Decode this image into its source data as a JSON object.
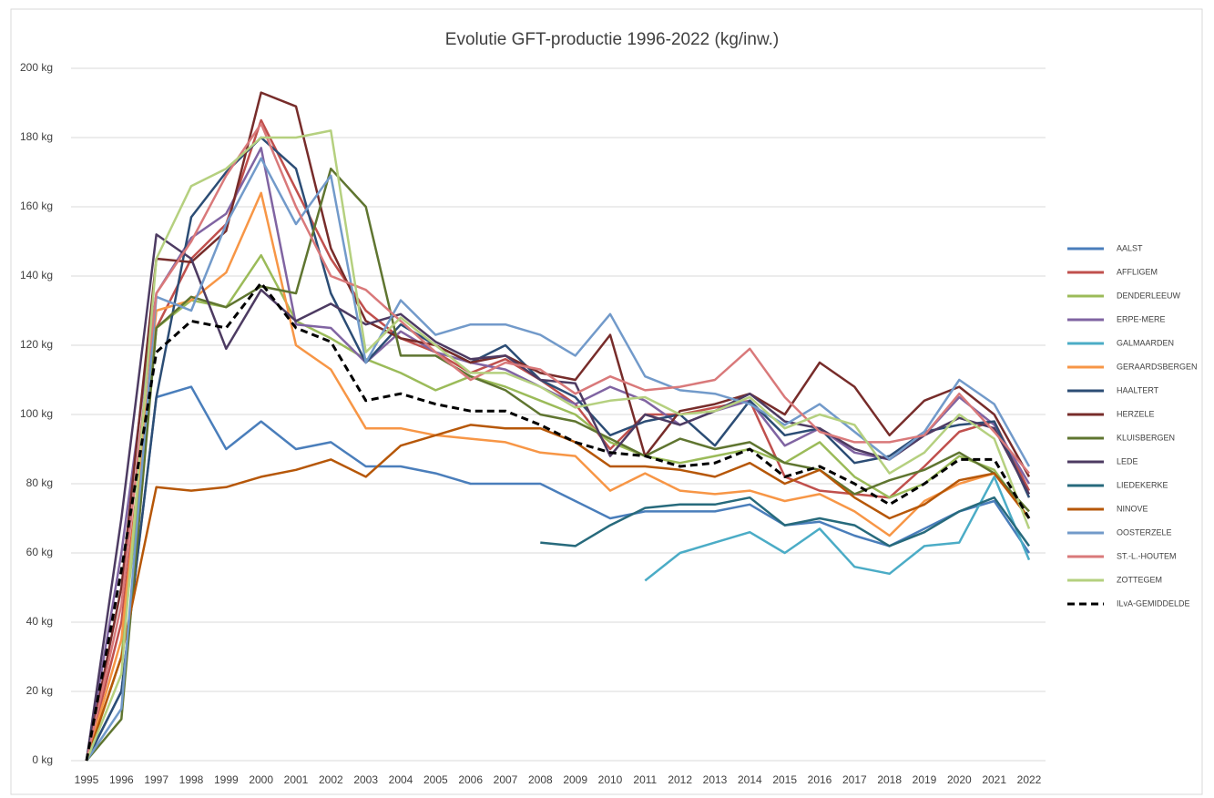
{
  "chart_data": {
    "type": "line",
    "title": "Evolutie GFT-productie 1996-2022 (kg/inw.)",
    "categories": [
      "1995",
      "1996",
      "1997",
      "1998",
      "1999",
      "2000",
      "2001",
      "2002",
      "2003",
      "2004",
      "2005",
      "2006",
      "2007",
      "2008",
      "2009",
      "2010",
      "2011",
      "2012",
      "2013",
      "2014",
      "2015",
      "2016",
      "2017",
      "2018",
      "2019",
      "2020",
      "2021",
      "2022"
    ],
    "ylim": [
      0,
      200
    ],
    "yticks": [
      {
        "value": 0,
        "label": "0 kg"
      },
      {
        "value": 20,
        "label": "20 kg"
      },
      {
        "value": 40,
        "label": "40 kg"
      },
      {
        "value": 60,
        "label": "60 kg"
      },
      {
        "value": 80,
        "label": "80 kg"
      },
      {
        "value": 100,
        "label": "100 kg"
      },
      {
        "value": 120,
        "label": "120 kg"
      },
      {
        "value": 140,
        "label": "140 kg"
      },
      {
        "value": 160,
        "label": "160 kg"
      },
      {
        "value": 180,
        "label": "180 kg"
      },
      {
        "value": 200,
        "label": "200 kg"
      }
    ],
    "grid": true,
    "legend": "right",
    "series": [
      {
        "name": "AALST",
        "color": "#4a7ebb",
        "values": [
          0,
          20,
          105,
          108,
          90,
          98,
          90,
          92,
          85,
          85,
          83,
          80,
          80,
          80,
          75,
          70,
          72,
          72,
          72,
          74,
          68,
          69,
          65,
          62,
          67,
          72,
          75,
          60
        ]
      },
      {
        "name": "AFFLIGEM",
        "color": "#c0504d",
        "values": [
          0,
          40,
          125,
          145,
          155,
          185,
          165,
          145,
          130,
          122,
          118,
          112,
          116,
          110,
          103,
          90,
          100,
          100,
          102,
          104,
          82,
          78,
          77,
          76,
          85,
          95,
          98,
          78
        ]
      },
      {
        "name": "DENDERLEEUW",
        "color": "#9bbb59",
        "values": [
          0,
          30,
          125,
          133,
          131,
          146,
          127,
          122,
          116,
          112,
          107,
          111,
          108,
          104,
          100,
          92,
          88,
          86,
          88,
          90,
          86,
          92,
          82,
          76,
          80,
          88,
          84,
          70
        ]
      },
      {
        "name": "ERPE-MERE",
        "color": "#8064a2",
        "values": [
          0,
          60,
          135,
          151,
          158,
          177,
          126,
          125,
          115,
          124,
          118,
          115,
          113,
          108,
          103,
          108,
          104,
          97,
          101,
          104,
          91,
          96,
          89,
          87,
          94,
          105,
          97,
          80
        ]
      },
      {
        "name": "GALMAARDEN",
        "color": "#4bacc6",
        "values": [
          null,
          null,
          null,
          null,
          null,
          null,
          null,
          null,
          null,
          null,
          null,
          null,
          null,
          null,
          null,
          null,
          52,
          60,
          63,
          66,
          60,
          67,
          56,
          54,
          62,
          63,
          82,
          58
        ]
      },
      {
        "name": "GERAARDSBERGEN",
        "color": "#f79646",
        "values": [
          0,
          35,
          130,
          133,
          141,
          164,
          120,
          113,
          96,
          96,
          94,
          93,
          92,
          89,
          88,
          78,
          83,
          78,
          77,
          78,
          75,
          77,
          72,
          65,
          75,
          80,
          83,
          70
        ]
      },
      {
        "name": "HAALTERT",
        "color": "#2c4d75",
        "values": [
          0,
          20,
          105,
          157,
          170,
          180,
          171,
          135,
          115,
          126,
          120,
          115,
          120,
          110,
          105,
          94,
          98,
          100,
          91,
          104,
          94,
          96,
          86,
          88,
          95,
          97,
          98,
          76
        ]
      },
      {
        "name": "HERZELE",
        "color": "#772c2a",
        "values": [
          0,
          50,
          145,
          144,
          153,
          193,
          189,
          148,
          127,
          122,
          120,
          115,
          117,
          112,
          110,
          123,
          88,
          101,
          103,
          106,
          100,
          115,
          108,
          94,
          104,
          108,
          100,
          82
        ]
      },
      {
        "name": "KLUISBERGEN",
        "color": "#5f7530",
        "values": [
          0,
          12,
          125,
          134,
          131,
          137,
          135,
          171,
          160,
          117,
          117,
          111,
          107,
          100,
          98,
          93,
          88,
          93,
          90,
          92,
          86,
          84,
          77,
          81,
          84,
          89,
          83,
          72
        ]
      },
      {
        "name": "LEDE",
        "color": "#4d3b62",
        "values": [
          0,
          70,
          152,
          145,
          119,
          136,
          127,
          132,
          126,
          129,
          121,
          116,
          117,
          110,
          109,
          88,
          100,
          97,
          101,
          106,
          98,
          96,
          90,
          87,
          94,
          99,
          96,
          77
        ]
      },
      {
        "name": "LIEDEKERKE",
        "color": "#276a7c",
        "values": [
          null,
          null,
          null,
          null,
          null,
          null,
          null,
          null,
          null,
          null,
          null,
          null,
          null,
          63,
          62,
          68,
          73,
          74,
          74,
          76,
          68,
          70,
          68,
          62,
          66,
          72,
          76,
          62
        ]
      },
      {
        "name": "NINOVE",
        "color": "#b65708",
        "values": [
          0,
          30,
          79,
          78,
          79,
          82,
          84,
          87,
          82,
          91,
          94,
          97,
          96,
          96,
          92,
          85,
          85,
          84,
          82,
          86,
          80,
          84,
          76,
          70,
          74,
          81,
          83,
          70
        ]
      },
      {
        "name": "OOSTERZELE",
        "color": "#729aca",
        "values": [
          0,
          15,
          134,
          130,
          155,
          174,
          155,
          169,
          115,
          133,
          123,
          126,
          126,
          123,
          117,
          129,
          111,
          107,
          106,
          103,
          97,
          103,
          95,
          87,
          95,
          110,
          103,
          85
        ]
      },
      {
        "name": "ST.-L.-HOUTEM",
        "color": "#d9797a",
        "values": [
          0,
          45,
          135,
          150,
          169,
          184,
          160,
          140,
          136,
          127,
          118,
          110,
          115,
          113,
          106,
          111,
          107,
          108,
          110,
          119,
          105,
          95,
          92,
          92,
          94,
          106,
          95,
          83
        ]
      },
      {
        "name": "ZOTTEGEM",
        "color": "#b5d07f",
        "values": [
          0,
          25,
          145,
          166,
          171,
          180,
          180,
          182,
          118,
          128,
          120,
          112,
          112,
          108,
          102,
          104,
          105,
          100,
          101,
          105,
          96,
          100,
          97,
          83,
          89,
          100,
          93,
          67
        ]
      },
      {
        "name": "ILvA-GEMIDDELDE",
        "color": "#000000",
        "dashed": true,
        "values": [
          0,
          55,
          118,
          127,
          125,
          138,
          125,
          121,
          104,
          106,
          103,
          101,
          101,
          97,
          92,
          89,
          88,
          85,
          86,
          90,
          82,
          85,
          80,
          74,
          80,
          87,
          87,
          70
        ]
      }
    ]
  }
}
